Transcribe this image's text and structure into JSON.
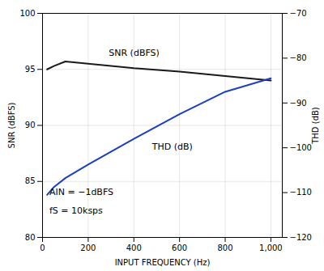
{
  "chart_data": {
    "type": "line",
    "x": [
      20,
      50,
      100,
      200,
      400,
      600,
      800,
      1000
    ],
    "series": [
      {
        "name": "SNR (dBFS)",
        "color": "#1a1a1a",
        "values": [
          95.0,
          95.3,
          95.7,
          95.5,
          95.1,
          94.8,
          94.4,
          94.0
        ]
      },
      {
        "name": "THD (dB)",
        "color": "#1a3fbf",
        "values": [
          83.8,
          84.5,
          85.3,
          86.5,
          88.8,
          91.0,
          93.0,
          94.2
        ]
      }
    ],
    "xlabel": "INPUT FREQUENCY (Hz)",
    "ylabel": "SNR (dBFS)",
    "y2label": "THD (dB)",
    "xlim": [
      0,
      1050
    ],
    "xticks": [
      0,
      200,
      400,
      600,
      800,
      1000
    ],
    "ylim": [
      80,
      100
    ],
    "yticks": [
      80,
      85,
      90,
      95,
      100
    ],
    "y2lim": [
      -120,
      -70
    ],
    "y2ticks": [
      -120,
      -110,
      -100,
      -90,
      -80,
      -70
    ],
    "grid": true,
    "annotations": [
      {
        "text": "SNR (dBFS)",
        "x": 290,
        "y": 96.2
      },
      {
        "text": "THD (dB)",
        "x": 480,
        "y": 87.8
      },
      {
        "text": "AIN = −1dBFS",
        "x": 30,
        "y": 83.8
      },
      {
        "text": "fS = 10ksps",
        "x": 30,
        "y": 82.1
      }
    ]
  }
}
